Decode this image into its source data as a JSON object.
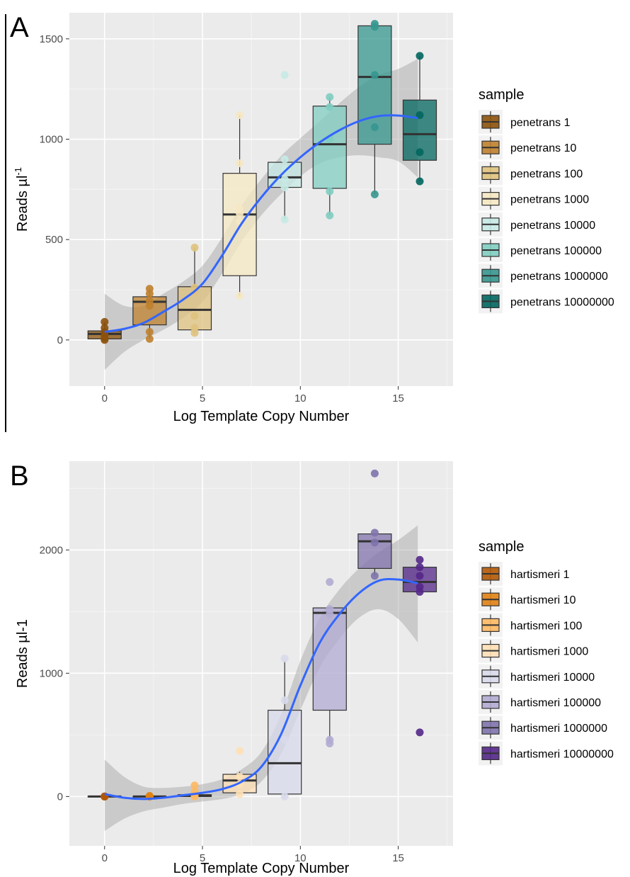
{
  "figure": {
    "panel_a_label": "A",
    "panel_b_label": "B"
  },
  "chart_data": [
    {
      "type": "box",
      "panel": "A",
      "xlabel": "Log Template Copy Number",
      "ylabel": "Reads µl",
      "ylabel_sup": "-1",
      "xlim": [
        -1.8,
        17.8
      ],
      "ylim": [
        -230,
        1630
      ],
      "xticks": [
        0,
        5,
        10,
        15
      ],
      "yticks": [
        0,
        500,
        1000,
        1500
      ],
      "grid": true,
      "legend": {
        "title": "sample",
        "position": "right",
        "entries": [
          "penetrans 1",
          "penetrans 10",
          "penetrans 100",
          "penetrans 1000",
          "penetrans 10000",
          "penetrans 100000",
          "penetrans 1000000",
          "penetrans 10000000"
        ]
      },
      "colors": [
        "#8c510a",
        "#bf812d",
        "#dfc27d",
        "#f6e8c3",
        "#c7eae5",
        "#80cdc1",
        "#35978f",
        "#01665e"
      ],
      "boxes": [
        {
          "x": 0,
          "q1": 5,
          "median": 30,
          "q3": 45,
          "whisker_low": 0,
          "whisker_high": 90,
          "points": [
            0,
            10,
            25,
            40,
            60,
            90
          ]
        },
        {
          "x": 2.3,
          "q1": 75,
          "median": 190,
          "q3": 215,
          "whisker_low": 5,
          "whisker_high": 255,
          "points": [
            5,
            40,
            170,
            195,
            230,
            255
          ]
        },
        {
          "x": 4.6,
          "q1": 50,
          "median": 150,
          "q3": 265,
          "whisker_low": 35,
          "whisker_high": 460,
          "points": [
            35,
            60,
            120,
            240,
            260,
            460
          ]
        },
        {
          "x": 6.9,
          "q1": 320,
          "median": 625,
          "q3": 830,
          "whisker_low": 220,
          "whisker_high": 1120,
          "points": [
            220,
            590,
            630,
            655,
            880,
            1120
          ]
        },
        {
          "x": 9.2,
          "q1": 760,
          "median": 810,
          "q3": 885,
          "whisker_low": 600,
          "whisker_high": 900,
          "points": [
            600,
            760,
            800,
            850,
            900,
            1320
          ]
        },
        {
          "x": 11.5,
          "q1": 755,
          "median": 975,
          "q3": 1165,
          "whisker_low": 620,
          "whisker_high": 1210,
          "points": [
            620,
            740,
            1000,
            1160,
            1210
          ]
        },
        {
          "x": 13.8,
          "q1": 975,
          "median": 1310,
          "q3": 1565,
          "whisker_low": 725,
          "whisker_high": 1575,
          "points": [
            725,
            1060,
            1320,
            1560,
            1575
          ]
        },
        {
          "x": 16.1,
          "q1": 895,
          "median": 1025,
          "q3": 1195,
          "whisker_low": 790,
          "whisker_high": 1415,
          "points": [
            790,
            935,
            1120,
            1415
          ]
        }
      ],
      "smooth": {
        "x": [
          0,
          1,
          2,
          3,
          4,
          5,
          6,
          7,
          8,
          9,
          10,
          11,
          12,
          13,
          14,
          15,
          16
        ],
        "y": [
          40,
          55,
          85,
          140,
          200,
          280,
          420,
          580,
          710,
          820,
          910,
          985,
          1045,
          1090,
          1115,
          1118,
          1105
        ],
        "lower": [
          -150,
          -60,
          0,
          50,
          110,
          190,
          330,
          490,
          620,
          725,
          815,
          880,
          910,
          920,
          910,
          890,
          810
        ],
        "upper": [
          230,
          170,
          170,
          230,
          290,
          370,
          510,
          670,
          800,
          915,
          1005,
          1090,
          1180,
          1260,
          1320,
          1350,
          1400
        ],
        "color": "#3366ff"
      }
    },
    {
      "type": "box",
      "panel": "B",
      "xlabel": "Log Template Copy Number",
      "ylabel": "Reads µl-1",
      "xlim": [
        -1.8,
        17.8
      ],
      "ylim": [
        -400,
        2720
      ],
      "xticks": [
        0,
        5,
        10,
        15
      ],
      "yticks": [
        0,
        1000,
        2000
      ],
      "grid": true,
      "legend": {
        "title": "sample",
        "position": "right",
        "entries": [
          "hartismeri 1",
          "hartismeri 10",
          "hartismeri 100",
          "hartismeri 1000",
          "hartismeri 10000",
          "hartismeri 100000",
          "hartismeri 1000000",
          "hartismeri 10000000"
        ]
      },
      "colors": [
        "#b35806",
        "#e08214",
        "#fdb863",
        "#fee0b6",
        "#d8daeb",
        "#b2abd2",
        "#8073ac",
        "#542788"
      ],
      "boxes": [
        {
          "x": 0,
          "q1": 0,
          "median": 0,
          "q3": 0,
          "whisker_low": 0,
          "whisker_high": 0,
          "points": [
            0,
            0,
            0,
            0,
            0
          ]
        },
        {
          "x": 2.3,
          "q1": 0,
          "median": 0,
          "q3": 0,
          "whisker_low": 0,
          "whisker_high": 5,
          "points": [
            0,
            0,
            5,
            0
          ]
        },
        {
          "x": 4.6,
          "q1": 0,
          "median": 5,
          "q3": 15,
          "whisker_low": 0,
          "whisker_high": 30,
          "points": [
            0,
            10,
            40,
            90
          ]
        },
        {
          "x": 6.9,
          "q1": 30,
          "median": 130,
          "q3": 180,
          "whisker_low": 20,
          "whisker_high": 200,
          "points": [
            20,
            100,
            160,
            370
          ]
        },
        {
          "x": 9.2,
          "q1": 20,
          "median": 270,
          "q3": 700,
          "whisker_low": 0,
          "whisker_high": 1100,
          "points": [
            0,
            460,
            780,
            1120
          ]
        },
        {
          "x": 11.5,
          "q1": 700,
          "median": 1490,
          "q3": 1530,
          "whisker_low": 430,
          "whisker_high": 1530,
          "points": [
            430,
            460,
            1480,
            1520,
            1740
          ]
        },
        {
          "x": 13.8,
          "q1": 1850,
          "median": 2070,
          "q3": 2130,
          "whisker_low": 1790,
          "whisker_high": 2130,
          "points": [
            1790,
            2060,
            2140,
            2620
          ]
        },
        {
          "x": 16.1,
          "q1": 1660,
          "median": 1740,
          "q3": 1860,
          "whisker_low": 1660,
          "whisker_high": 1870,
          "points": [
            520,
            1660,
            1700,
            1790,
            1860,
            1920
          ]
        }
      ],
      "smooth": {
        "x": [
          0,
          1,
          2,
          3,
          4,
          5,
          6,
          7,
          8,
          9,
          10,
          11,
          12,
          13,
          14,
          15,
          16
        ],
        "y": [
          20,
          -10,
          -20,
          -10,
          10,
          30,
          60,
          120,
          240,
          500,
          900,
          1250,
          1480,
          1650,
          1750,
          1760,
          1730
        ],
        "lower": [
          -280,
          -180,
          -120,
          -90,
          -60,
          -40,
          -20,
          20,
          120,
          340,
          700,
          1050,
          1280,
          1450,
          1520,
          1440,
          1250
        ],
        "upper": [
          300,
          160,
          80,
          70,
          80,
          100,
          140,
          220,
          360,
          660,
          1100,
          1450,
          1680,
          1850,
          1980,
          2080,
          2200
        ],
        "color": "#3366ff"
      }
    }
  ]
}
